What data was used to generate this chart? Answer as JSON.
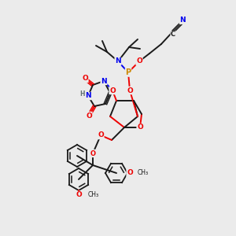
{
  "background_color": "#ebebeb",
  "atom_colors": {
    "C": "#1a1a1a",
    "N": "#0000ee",
    "O": "#ee0000",
    "P": "#cc8800",
    "H": "#607070"
  },
  "figsize": [
    3.0,
    3.0
  ],
  "dpi": 100
}
